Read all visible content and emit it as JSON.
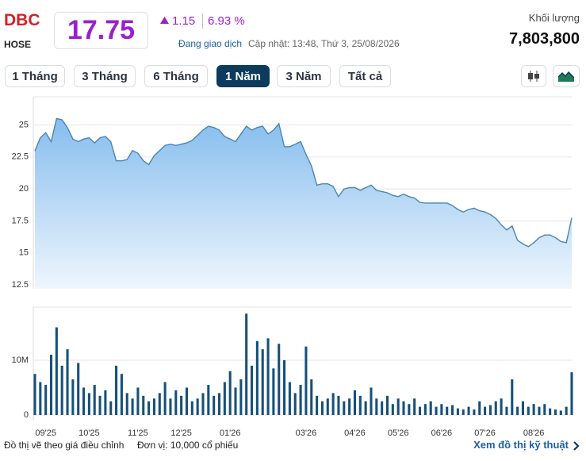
{
  "header": {
    "symbol": "DBC",
    "exchange": "HOSE",
    "price": "17.75",
    "change": "1.15",
    "change_pct": "6.93 %",
    "status": "Đang giao dịch",
    "updated": "Cập nhật: 13:48, Thứ 3, 25/08/2026",
    "volume_label": "Khối lượng",
    "volume": "7,803,800"
  },
  "tabs": [
    "1 Tháng",
    "3 Tháng",
    "6 Tháng",
    "1 Năm",
    "3 Năm",
    "Tất cả"
  ],
  "active_tab": 3,
  "chart_data": [
    {
      "type": "area",
      "color": "#4b84b0",
      "grid": true,
      "ylim": [
        12.2,
        27.2
      ],
      "yticks": [
        25,
        22.5,
        20,
        17.5,
        15,
        12.5
      ],
      "values": [
        22.96,
        24.0,
        24.4,
        23.7,
        25.5,
        25.4,
        24.8,
        23.9,
        23.7,
        23.9,
        24.0,
        23.6,
        24.0,
        24.1,
        23.7,
        22.2,
        22.2,
        22.3,
        23.0,
        22.8,
        22.2,
        21.9,
        22.6,
        23.0,
        23.4,
        23.5,
        23.4,
        23.5,
        23.6,
        23.8,
        24.2,
        24.6,
        24.9,
        24.8,
        24.6,
        24.1,
        23.9,
        23.7,
        24.3,
        24.9,
        24.6,
        24.8,
        24.9,
        24.3,
        24.6,
        25.1,
        23.3,
        23.3,
        23.5,
        23.7,
        22.7,
        21.8,
        20.3,
        20.4,
        20.4,
        20.2,
        19.4,
        20.0,
        20.1,
        20.1,
        19.9,
        20.1,
        20.3,
        19.9,
        19.8,
        19.7,
        19.5,
        19.4,
        19.6,
        19.4,
        19.3,
        18.95,
        18.9,
        18.9,
        18.9,
        18.9,
        18.9,
        18.7,
        18.4,
        18.2,
        18.4,
        18.5,
        18.3,
        18.2,
        18.0,
        17.7,
        17.2,
        16.8,
        17.1,
        16.0,
        15.7,
        15.5,
        15.8,
        16.2,
        16.4,
        16.4,
        16.2,
        15.9,
        15.8,
        17.75
      ]
    },
    {
      "type": "bar",
      "color": "#17507a",
      "grid": true,
      "ylim": [
        0,
        19700000
      ],
      "yticks": [
        0,
        {
          "value": 10000000,
          "label": "10M"
        }
      ],
      "categories": [
        null,
        null,
        "09'25",
        null,
        null,
        null,
        null,
        null,
        null,
        null,
        "10'25",
        null,
        null,
        null,
        null,
        null,
        null,
        null,
        null,
        "11'25",
        null,
        null,
        null,
        null,
        null,
        null,
        null,
        "12'25",
        null,
        null,
        null,
        null,
        null,
        null,
        null,
        null,
        "01'26",
        null,
        null,
        null,
        null,
        null,
        null,
        null,
        null,
        null,
        null,
        null,
        null,
        null,
        "03'26",
        null,
        null,
        null,
        null,
        null,
        null,
        null,
        null,
        "04'26",
        null,
        null,
        null,
        null,
        null,
        null,
        null,
        "05'26",
        null,
        null,
        null,
        null,
        null,
        null,
        null,
        "06'26",
        null,
        null,
        null,
        null,
        null,
        null,
        null,
        "07'26",
        null,
        null,
        null,
        null,
        null,
        null,
        null,
        null,
        "08'26",
        null,
        null,
        null,
        null,
        null,
        null,
        null
      ],
      "values": [
        7500000,
        6000000,
        5500000,
        11000000,
        16000000,
        9000000,
        12000000,
        6500000,
        9500000,
        5000000,
        4000000,
        5500000,
        3500000,
        4500000,
        2500000,
        9000000,
        7500000,
        4000000,
        3000000,
        5000000,
        3500000,
        2500000,
        3000000,
        4000000,
        6000000,
        3000000,
        4500000,
        3500000,
        5000000,
        2500000,
        3000000,
        4000000,
        5500000,
        3500000,
        4000000,
        6000000,
        8000000,
        5000000,
        6500000,
        18500000,
        9000000,
        13500000,
        12000000,
        14000000,
        8500000,
        13000000,
        10000000,
        6000000,
        4000000,
        5500000,
        12500000,
        6500000,
        3500000,
        2500000,
        3000000,
        4000000,
        3500000,
        2500000,
        3000000,
        4500000,
        3500000,
        2500000,
        5000000,
        3000000,
        2500000,
        3500000,
        2000000,
        3000000,
        2500000,
        2000000,
        3000000,
        1500000,
        2000000,
        2500000,
        1500000,
        2000000,
        1500000,
        1800000,
        1200000,
        1000000,
        1500000,
        1000000,
        2500000,
        1500000,
        1800000,
        2500000,
        3000000,
        1500000,
        6500000,
        1500000,
        2500000,
        1500000,
        2000000,
        1500000,
        2000000,
        1200000,
        1000000,
        800000,
        1500000,
        7803800
      ]
    }
  ],
  "footer": {
    "note": "Đồ thị vẽ theo giá điều chỉnh",
    "unit": "Đơn vị: 10,000 cổ phiếu",
    "link": "Xem đồ thị kỹ thuật"
  }
}
